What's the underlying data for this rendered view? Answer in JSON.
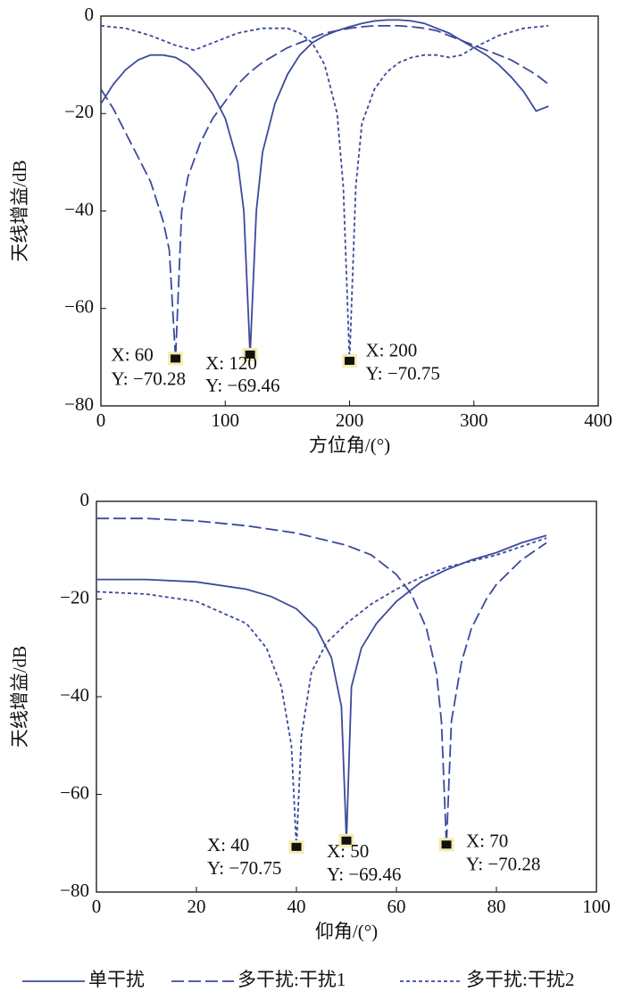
{
  "chart_data": [
    {
      "type": "line",
      "xlabel": "方位角/(°)",
      "ylabel": "天线增益/dB",
      "xlim": [
        0,
        400
      ],
      "ylim": [
        -80,
        0
      ],
      "xticks": [
        0,
        100,
        200,
        300,
        400
      ],
      "yticks": [
        {
          "value": -80,
          "label": "−80"
        },
        {
          "value": -60,
          "label": "−60"
        },
        {
          "value": -40,
          "label": "−40"
        },
        {
          "value": -20,
          "label": "−20"
        },
        0
      ],
      "series": [
        {
          "color": "#3b4a9c",
          "style": "solid",
          "x": [
            0,
            10,
            20,
            30,
            40,
            50,
            60,
            70,
            80,
            90,
            100,
            110,
            115,
            120,
            125,
            130,
            140,
            150,
            160,
            170,
            180,
            190,
            200,
            210,
            220,
            230,
            240,
            250,
            260,
            270,
            280,
            290,
            300,
            310,
            320,
            330,
            340,
            350,
            355,
            360
          ],
          "values": [
            -18,
            -14,
            -11,
            -9,
            -8,
            -8,
            -8.5,
            -10,
            -12.5,
            -16,
            -21,
            -30,
            -40,
            -69.46,
            -40,
            -28,
            -18,
            -12,
            -8,
            -5.5,
            -4,
            -3,
            -2.2,
            -1.5,
            -1,
            -0.8,
            -0.8,
            -1,
            -1.5,
            -2.5,
            -3.5,
            -5,
            -6.5,
            -8,
            -10,
            -12.5,
            -15.5,
            -19.5,
            -19,
            -18.5
          ]
        },
        {
          "color": "#3b4a9c",
          "style": "dashed",
          "x": [
            0,
            10,
            20,
            30,
            40,
            50,
            55,
            60,
            65,
            70,
            80,
            90,
            100,
            110,
            120,
            130,
            140,
            150,
            160,
            170,
            180,
            190,
            200,
            210,
            220,
            230,
            240,
            250,
            260,
            270,
            280,
            290,
            300,
            310,
            320,
            330,
            340,
            350,
            360
          ],
          "values": [
            -15,
            -19,
            -24,
            -29,
            -34,
            -42,
            -48,
            -70.28,
            -40,
            -33,
            -26,
            -21,
            -17.5,
            -14,
            -11.5,
            -9.5,
            -8,
            -6.5,
            -5.5,
            -4.5,
            -3.5,
            -3,
            -2.5,
            -2.2,
            -2,
            -2,
            -2,
            -2.2,
            -2.5,
            -3,
            -4,
            -5,
            -6,
            -7,
            -8,
            -9,
            -10.5,
            -12,
            -14
          ]
        },
        {
          "color": "#3b4a9c",
          "style": "dotted",
          "x": [
            0,
            20,
            40,
            60,
            75,
            90,
            110,
            130,
            150,
            160,
            170,
            180,
            190,
            195,
            200,
            205,
            210,
            220,
            230,
            240,
            250,
            260,
            270,
            280,
            290,
            300,
            320,
            340,
            360
          ],
          "values": [
            -2,
            -2.5,
            -4,
            -6,
            -7,
            -5.5,
            -3.5,
            -2.5,
            -2.5,
            -3.5,
            -5.5,
            -10,
            -20,
            -35,
            -70.75,
            -35,
            -22,
            -15,
            -11.5,
            -9.5,
            -8.5,
            -8,
            -8,
            -8.5,
            -8,
            -6.5,
            -4,
            -2.5,
            -2
          ]
        }
      ],
      "annotations": [
        {
          "x": 60,
          "y": -70.28,
          "x_label": "X: 60",
          "y_label": "Y: −70.28"
        },
        {
          "x": 120,
          "y": -69.46,
          "x_label": "X: 120",
          "y_label": "Y: −69.46"
        },
        {
          "x": 200,
          "y": -70.75,
          "x_label": "X: 200",
          "y_label": "Y: −70.75"
        }
      ]
    },
    {
      "type": "line",
      "xlabel": "仰角/(°)",
      "ylabel": "天线增益/dB",
      "xlim": [
        0,
        100
      ],
      "ylim": [
        -80,
        0
      ],
      "xticks": [
        0,
        20,
        40,
        60,
        80,
        100
      ],
      "yticks": [
        {
          "value": -80,
          "label": "−80"
        },
        {
          "value": -60,
          "label": "−60"
        },
        {
          "value": -40,
          "label": "−40"
        },
        {
          "value": -20,
          "label": "−20"
        },
        0
      ],
      "series": [
        {
          "color": "#3b4a9c",
          "style": "solid",
          "x": [
            0,
            10,
            20,
            30,
            35,
            40,
            44,
            47,
            49,
            50,
            51,
            53,
            56,
            60,
            65,
            70,
            75,
            80,
            85,
            90
          ],
          "values": [
            -16,
            -16,
            -16.5,
            -18,
            -19.5,
            -22,
            -26,
            -32,
            -42,
            -69.46,
            -38,
            -30,
            -25,
            -20.5,
            -16.5,
            -14,
            -12,
            -10.5,
            -8.5,
            -7
          ]
        },
        {
          "color": "#3b4a9c",
          "style": "dashed",
          "x": [
            0,
            10,
            20,
            30,
            40,
            50,
            55,
            60,
            63,
            66,
            68,
            69,
            70,
            71,
            73,
            75,
            78,
            80,
            85,
            90
          ],
          "values": [
            -3.5,
            -3.5,
            -4,
            -5,
            -6.5,
            -9,
            -11,
            -15,
            -19,
            -26,
            -35,
            -45,
            -70.28,
            -45,
            -33,
            -26,
            -20,
            -17,
            -12,
            -8.5
          ]
        },
        {
          "color": "#3b4a9c",
          "style": "dotted",
          "x": [
            0,
            10,
            20,
            30,
            34,
            37,
            39,
            40,
            41,
            43,
            46,
            50,
            55,
            60,
            65,
            70,
            80,
            90
          ],
          "values": [
            -18.5,
            -19,
            -20.5,
            -25,
            -30,
            -38,
            -50,
            -70.75,
            -48,
            -35,
            -29,
            -25,
            -21,
            -18,
            -15.5,
            -13.5,
            -11,
            -7.5
          ]
        }
      ],
      "annotations": [
        {
          "x": 40,
          "y": -70.75,
          "x_label": "X: 40",
          "y_label": "Y: −70.75"
        },
        {
          "x": 50,
          "y": -69.46,
          "x_label": "X: 50",
          "y_label": "Y: −69.46"
        },
        {
          "x": 70,
          "y": -70.28,
          "x_label": "X: 70",
          "y_label": "Y: −70.28"
        }
      ]
    }
  ],
  "legend": [
    "单干扰",
    "多干扰:干扰1",
    "多干扰:干扰2"
  ]
}
